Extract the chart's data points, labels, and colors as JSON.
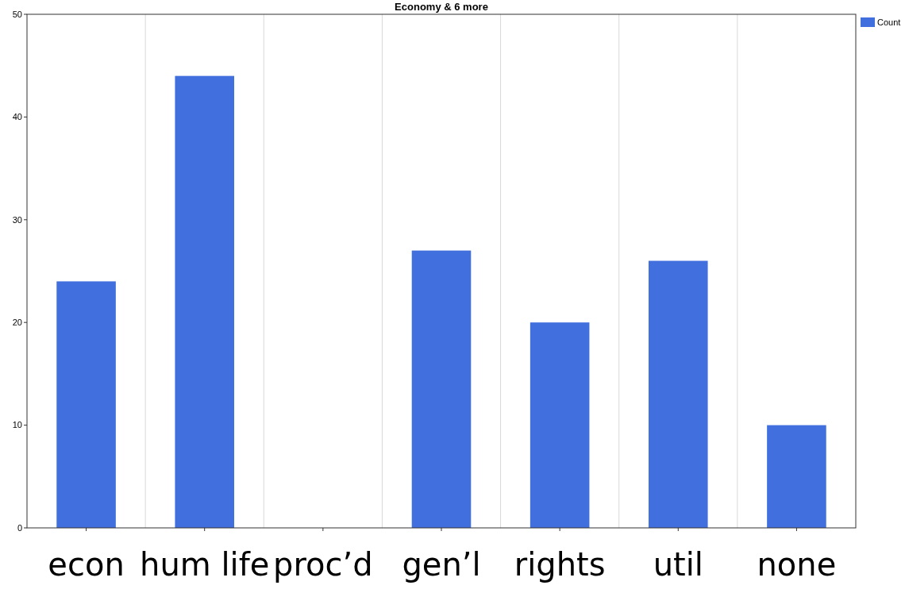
{
  "chart_data": {
    "type": "bar",
    "title": "Economy & 6 more",
    "categories": [
      "econ",
      "hum life",
      "proc’d",
      "gen’l",
      "rights",
      "util",
      "none"
    ],
    "series": [
      {
        "name": "Count",
        "color": "#4170de",
        "values": [
          24,
          44,
          0,
          27,
          20,
          26,
          10
        ]
      }
    ],
    "ylim": [
      0,
      50
    ],
    "yticks": [
      0,
      10,
      20,
      30,
      40,
      50
    ],
    "grid": "x",
    "legend": "top right"
  }
}
